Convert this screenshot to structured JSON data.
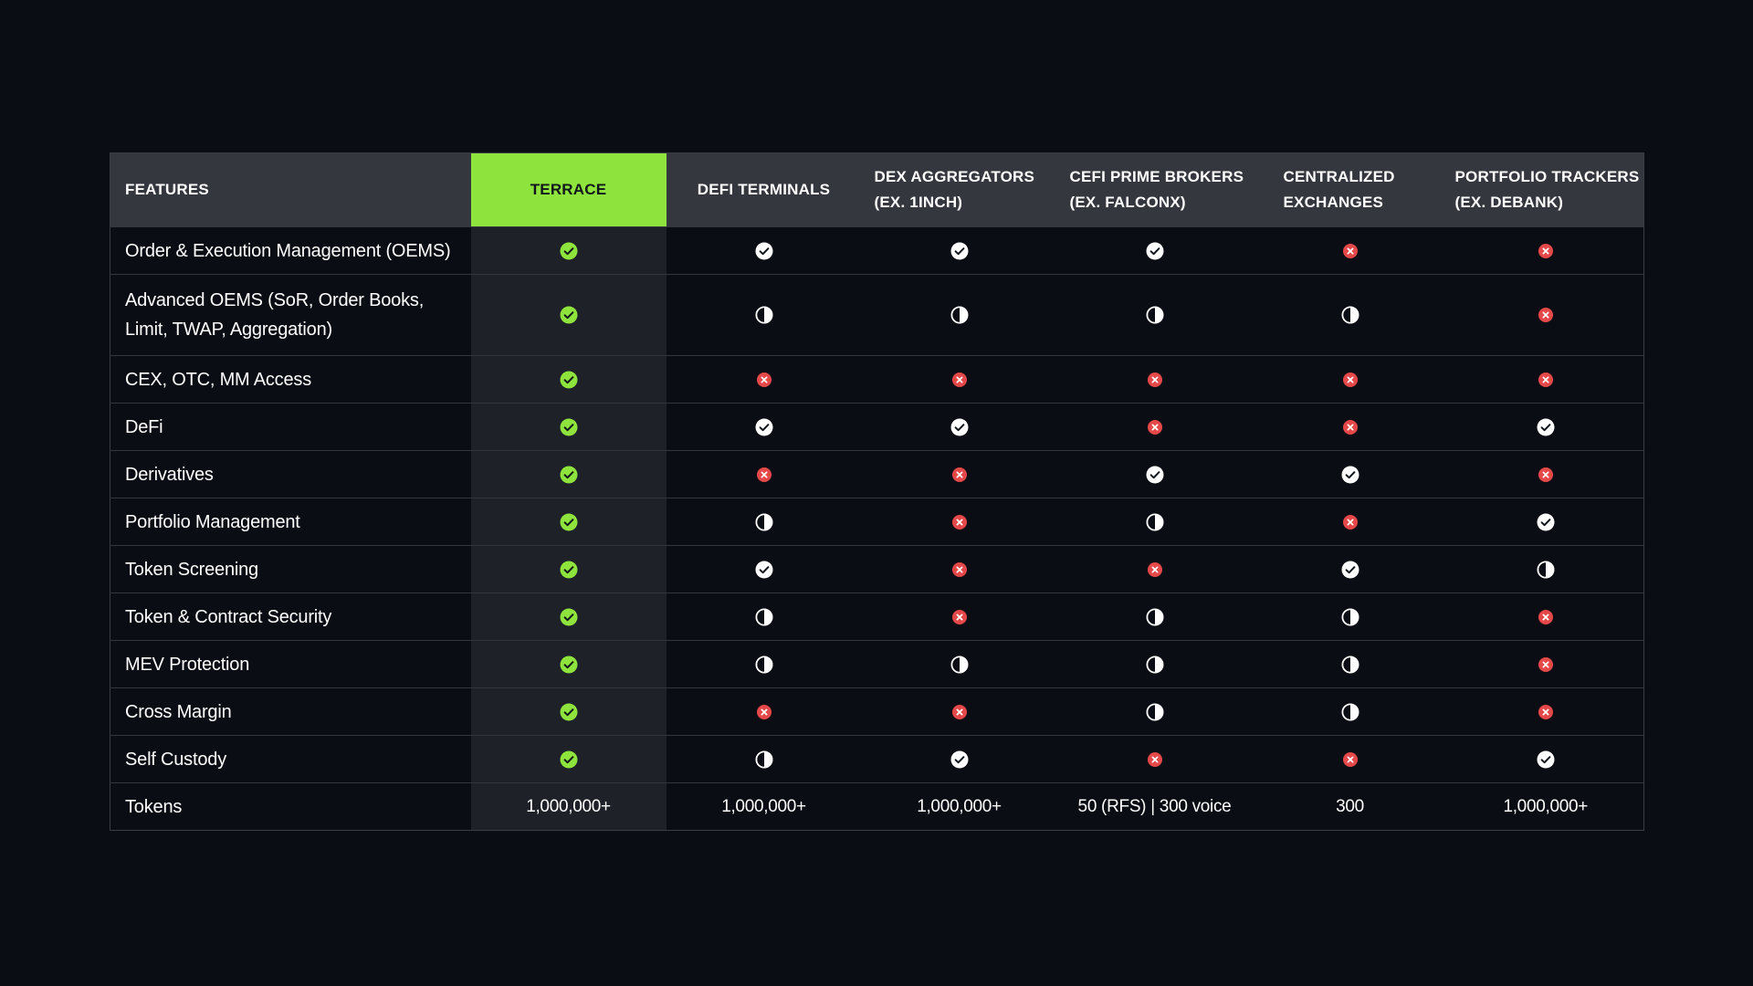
{
  "colors": {
    "background": "#0a0d14",
    "header_bg": "#34373d",
    "highlight": "#8fe33d",
    "highlight_column_bg": "#1e2127",
    "yes_terrace": "#8fe33d",
    "yes": "#ffffff",
    "partial": "#ffffff",
    "no": "#e54848"
  },
  "table": {
    "columns": [
      "FEATURES",
      "TERRACE",
      "DEFI TERMINALS",
      [
        "DEX AGGREGATORS",
        "(EX. 1INCH)"
      ],
      [
        "CEFI PRIME BROKERS",
        "(EX. FALCONX)"
      ],
      [
        "CENTRALIZED",
        "EXCHANGES"
      ],
      [
        "PORTFOLIO TRACKERS",
        "(EX. DEBANK)"
      ]
    ],
    "rows": [
      {
        "feature": "Order & Execution Management (OEMS)",
        "cells": [
          "yes",
          "yes",
          "yes",
          "yes",
          "no",
          "no"
        ]
      },
      {
        "feature": [
          "Advanced OEMS (SoR, Order Books,",
          "Limit, TWAP, Aggregation)"
        ],
        "cells": [
          "yes",
          "partial",
          "partial",
          "partial",
          "partial",
          "no"
        ]
      },
      {
        "feature": "CEX, OTC, MM Access",
        "cells": [
          "yes",
          "no",
          "no",
          "no",
          "no",
          "no"
        ]
      },
      {
        "feature": "DeFi",
        "cells": [
          "yes",
          "yes",
          "yes",
          "no",
          "no",
          "yes"
        ]
      },
      {
        "feature": "Derivatives",
        "cells": [
          "yes",
          "no",
          "no",
          "yes",
          "yes",
          "no"
        ]
      },
      {
        "feature": "Portfolio Management",
        "cells": [
          "yes",
          "partial",
          "no",
          "partial",
          "no",
          "yes"
        ]
      },
      {
        "feature": "Token Screening",
        "cells": [
          "yes",
          "yes",
          "no",
          "no",
          "yes",
          "partial"
        ]
      },
      {
        "feature": "Token & Contract Security",
        "cells": [
          "yes",
          "partial",
          "no",
          "partial",
          "partial",
          "no"
        ]
      },
      {
        "feature": "MEV Protection",
        "cells": [
          "yes",
          "partial",
          "partial",
          "partial",
          "partial",
          "no"
        ]
      },
      {
        "feature": "Cross Margin",
        "cells": [
          "yes",
          "no",
          "no",
          "partial",
          "partial",
          "no"
        ]
      },
      {
        "feature": "Self Custody",
        "cells": [
          "yes",
          "partial",
          "yes",
          "no",
          "no",
          "yes"
        ]
      }
    ],
    "tokens_row": {
      "feature": "Tokens",
      "values": [
        "1,000,000+",
        "1,000,000+",
        "1,000,000+",
        "50 (RFS) | 300 voice",
        "300",
        "1,000,000+"
      ]
    }
  }
}
